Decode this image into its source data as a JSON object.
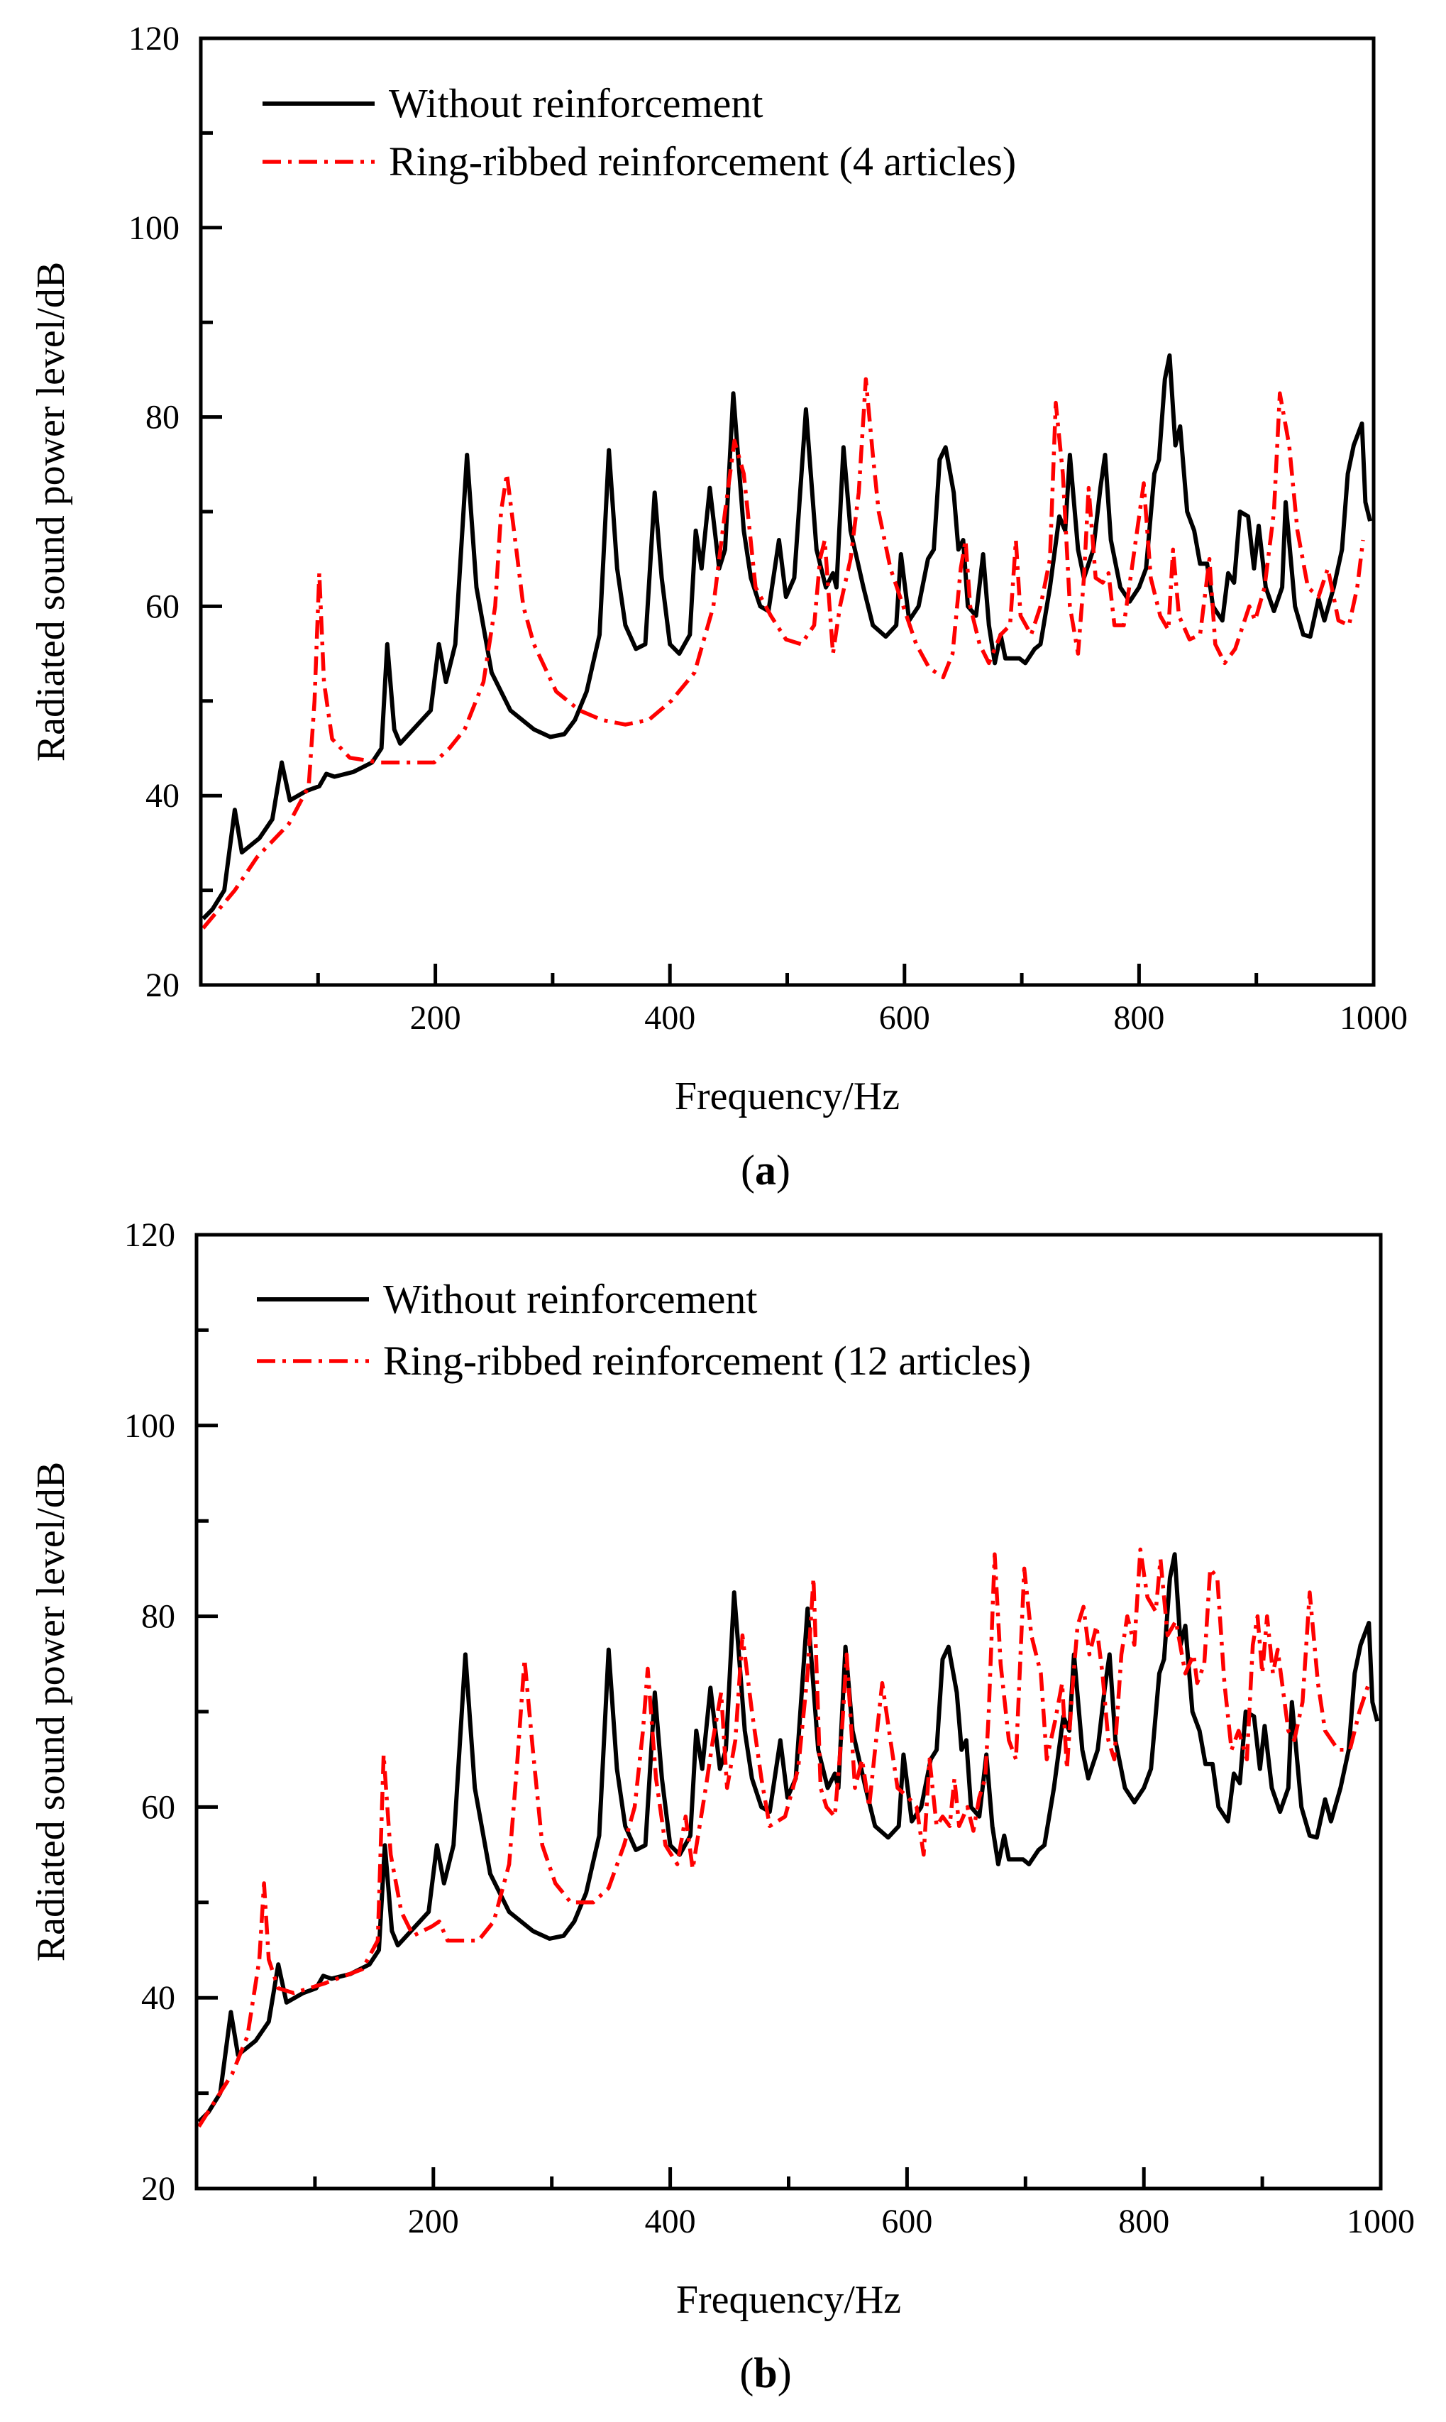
{
  "chart_data": [
    {
      "type": "line",
      "panel_label": "a",
      "xlabel": "Frequency/Hz",
      "ylabel": "Radiated sound power level/dB",
      "xlim": [
        0,
        1000
      ],
      "ylim": [
        20,
        120
      ],
      "xticks": [
        200,
        400,
        600,
        800,
        1000
      ],
      "yticks": [
        20,
        40,
        60,
        80,
        100,
        120
      ],
      "legend_position": "top-left",
      "grid": false,
      "series": [
        {
          "name": "Without reinforcement",
          "color": "#000000",
          "style": "solid",
          "x": [
            2,
            10,
            20,
            29,
            35,
            50,
            61,
            69,
            76,
            90,
            101,
            107,
            114,
            130,
            146,
            154,
            159,
            165,
            170,
            196,
            203,
            209,
            217,
            227,
            235,
            248,
            264,
            284,
            298,
            310,
            319,
            329,
            340,
            348,
            355,
            362,
            371,
            379,
            387,
            393,
            400,
            408,
            417,
            422,
            427,
            434,
            442,
            447,
            454,
            463,
            469,
            477,
            484,
            493,
            499,
            506,
            516,
            525,
            533,
            539,
            542,
            548,
            554,
            565,
            573,
            584,
            593,
            597,
            604,
            612,
            620,
            625,
            630,
            635,
            642,
            646,
            650,
            654,
            661,
            667,
            672,
            677,
            682,
            686,
            698,
            703,
            711,
            716,
            724,
            732,
            737,
            741,
            748,
            753,
            761,
            767,
            771,
            776,
            784,
            792,
            800,
            806,
            813,
            817,
            822,
            826,
            831,
            835,
            841,
            847,
            852,
            858,
            863,
            871,
            876,
            881,
            886,
            893,
            898,
            902,
            908,
            915,
            922,
            925,
            933,
            940,
            946,
            953,
            958,
            966,
            973,
            978,
            983,
            990,
            993,
            997
          ],
          "y": [
            27,
            28,
            30,
            38.5,
            34,
            35.5,
            37.5,
            43.5,
            39.5,
            40.5,
            41,
            42.3,
            42,
            42.5,
            43.5,
            45,
            56,
            47,
            45.5,
            49,
            56,
            52,
            56,
            76,
            62,
            53,
            49,
            47,
            46.2,
            46.5,
            48,
            51,
            57,
            76.5,
            64,
            58,
            55.5,
            56,
            72,
            63,
            56,
            55,
            57,
            68,
            64,
            72.5,
            64,
            66,
            82.5,
            68,
            63,
            60,
            59.5,
            67,
            61,
            63,
            80.8,
            66,
            62,
            63.5,
            62,
            76.8,
            68,
            62,
            58,
            56.8,
            58,
            65.5,
            58.5,
            60,
            65,
            66,
            75.5,
            76.8,
            72,
            66,
            67,
            60,
            59,
            65.5,
            58,
            54,
            57,
            54.5,
            54.5,
            54,
            55.5,
            56,
            62,
            69.5,
            68,
            76,
            66,
            63,
            66,
            72.5,
            76,
            67,
            62,
            60.5,
            62,
            64,
            74,
            75.5,
            84,
            86.5,
            77,
            79,
            70,
            68,
            64.5,
            64.5,
            60,
            58.5,
            63.5,
            62.5,
            70,
            69.5,
            64,
            68.5,
            62,
            59.5,
            62,
            71,
            60,
            57,
            56.8,
            60.8,
            58.5,
            62,
            66,
            74,
            77,
            79.3,
            71,
            69
          ]
        },
        {
          "name": "Ring-ribbed reinforcement (4 articles)",
          "color": "#ff0000",
          "style": "dash-dot",
          "x": [
            2,
            29,
            48,
            75,
            92,
            97,
            101,
            105,
            112,
            127,
            153,
            199,
            212,
            225,
            241,
            251,
            256,
            261,
            267,
            275,
            284,
            303,
            323,
            342,
            362,
            382,
            401,
            421,
            437,
            447,
            455,
            463,
            473,
            486,
            499,
            512,
            523,
            528,
            532,
            539,
            545,
            554,
            561,
            567,
            573,
            578,
            588,
            599,
            610,
            621,
            633,
            641,
            648,
            652,
            656,
            664,
            672,
            682,
            690,
            695,
            699,
            708,
            716,
            724,
            729,
            735,
            741,
            748,
            753,
            757,
            763,
            769,
            774,
            779,
            787,
            795,
            804,
            810,
            818,
            825,
            829,
            834,
            843,
            852,
            860,
            865,
            873,
            882,
            894,
            899,
            907,
            915,
            920,
            928,
            935,
            944,
            953,
            961,
            970,
            979,
            986,
            991
          ],
          "y": [
            26,
            30,
            33.5,
            37,
            41,
            50,
            63.5,
            52,
            46,
            44,
            43.5,
            43.5,
            45,
            47,
            52,
            60,
            70,
            74,
            68,
            60,
            56,
            51,
            49,
            48,
            47.5,
            48,
            50,
            53,
            60,
            70,
            77.5,
            74,
            62,
            59,
            56.5,
            56,
            58,
            65,
            67,
            55,
            60,
            65,
            72,
            84,
            76,
            70,
            64,
            60,
            56,
            53.5,
            52.5,
            55,
            64,
            67,
            60,
            56,
            54,
            57,
            58,
            67,
            59,
            57,
            60,
            65,
            81.5,
            74,
            60,
            55,
            63,
            72.5,
            63,
            62.5,
            63.5,
            58,
            58,
            65,
            73,
            63,
            59,
            57.5,
            66,
            59,
            56.5,
            57,
            65,
            56,
            54,
            55.5,
            60,
            58.5,
            62,
            70,
            82.5,
            77,
            68,
            62,
            61,
            64,
            58.5,
            58,
            62,
            67
          ]
        }
      ]
    },
    {
      "type": "line",
      "panel_label": "b",
      "xlabel": "Frequency/Hz",
      "ylabel": "Radiated sound power level/dB",
      "xlim": [
        0,
        1000
      ],
      "ylim": [
        20,
        120
      ],
      "xticks": [
        200,
        400,
        600,
        800,
        1000
      ],
      "yticks": [
        20,
        40,
        60,
        80,
        100,
        120
      ],
      "legend_position": "top-left",
      "grid": false,
      "series": [
        {
          "name": "Without reinforcement",
          "color": "#000000",
          "style": "solid",
          "x": [
            2,
            10,
            20,
            29,
            35,
            50,
            61,
            69,
            76,
            90,
            101,
            107,
            114,
            130,
            146,
            154,
            159,
            165,
            170,
            196,
            203,
            209,
            217,
            227,
            235,
            248,
            264,
            284,
            298,
            310,
            319,
            329,
            340,
            348,
            355,
            362,
            371,
            379,
            387,
            393,
            400,
            408,
            417,
            422,
            427,
            434,
            442,
            447,
            454,
            463,
            469,
            477,
            484,
            493,
            499,
            506,
            516,
            525,
            533,
            539,
            542,
            548,
            554,
            565,
            573,
            584,
            593,
            597,
            604,
            612,
            620,
            625,
            630,
            635,
            642,
            646,
            650,
            654,
            661,
            667,
            672,
            677,
            682,
            686,
            698,
            703,
            711,
            716,
            724,
            732,
            737,
            741,
            748,
            753,
            761,
            767,
            771,
            776,
            784,
            792,
            800,
            806,
            813,
            817,
            822,
            826,
            831,
            835,
            841,
            847,
            852,
            858,
            863,
            871,
            876,
            881,
            886,
            893,
            898,
            902,
            908,
            915,
            922,
            925,
            933,
            940,
            946,
            953,
            958,
            966,
            973,
            978,
            983,
            990,
            993,
            997
          ],
          "y": [
            27,
            28,
            30,
            38.5,
            34,
            35.5,
            37.5,
            43.5,
            39.5,
            40.5,
            41,
            42.3,
            42,
            42.5,
            43.5,
            45,
            56,
            47,
            45.5,
            49,
            56,
            52,
            56,
            76,
            62,
            53,
            49,
            47,
            46.2,
            46.5,
            48,
            51,
            57,
            76.5,
            64,
            58,
            55.5,
            56,
            72,
            63,
            56,
            55,
            57,
            68,
            64,
            72.5,
            64,
            66,
            82.5,
            68,
            63,
            60,
            59.5,
            67,
            61,
            63,
            80.8,
            66,
            62,
            63.5,
            62,
            76.8,
            68,
            62,
            58,
            56.8,
            58,
            65.5,
            58.5,
            60,
            65,
            66,
            75.5,
            76.8,
            72,
            66,
            67,
            60,
            59,
            65.5,
            58,
            54,
            57,
            54.5,
            54.5,
            54,
            55.5,
            56,
            62,
            69.5,
            68,
            76,
            66,
            63,
            66,
            72.5,
            76,
            67,
            62,
            60.5,
            62,
            64,
            74,
            75.5,
            84,
            86.5,
            77,
            79,
            70,
            68,
            64.5,
            64.5,
            60,
            58.5,
            63.5,
            62.5,
            70,
            69.5,
            64,
            68.5,
            62,
            59.5,
            62,
            71,
            60,
            57,
            56.8,
            60.8,
            58.5,
            62,
            66,
            74,
            77,
            79.3,
            71,
            69
          ]
        },
        {
          "name": "Ring-ribbed reinforcement (12 articles)",
          "color": "#ff0000",
          "style": "dash-dot",
          "x": [
            2,
            30,
            43,
            53,
            57,
            61,
            69,
            82,
            108,
            140,
            153,
            158,
            164,
            173,
            183,
            199,
            205,
            212,
            238,
            251,
            264,
            271,
            277,
            284,
            292,
            303,
            316,
            335,
            348,
            361,
            370,
            377,
            381,
            388,
            396,
            406,
            413,
            419,
            430,
            436,
            443,
            448,
            455,
            461,
            469,
            477,
            484,
            497,
            508,
            516,
            521,
            527,
            532,
            539,
            545,
            549,
            556,
            562,
            568,
            573,
            579,
            586,
            592,
            601,
            608,
            614,
            619,
            625,
            630,
            636,
            640,
            644,
            651,
            656,
            661,
            666,
            669,
            674,
            679,
            686,
            692,
            699,
            705,
            713,
            718,
            725,
            731,
            735,
            740,
            744,
            749,
            754,
            760,
            765,
            770,
            775,
            781,
            786,
            792,
            797,
            803,
            810,
            814,
            820,
            827,
            835,
            842,
            845,
            851,
            856,
            862,
            868,
            874,
            880,
            887,
            892,
            896,
            900,
            904,
            909,
            913,
            922,
            927,
            934,
            940,
            947,
            953,
            964,
            974,
            982,
            990
          ],
          "y": [
            26.5,
            32,
            36,
            44,
            52,
            44,
            41,
            40.5,
            41.5,
            43,
            46,
            65.5,
            55,
            49,
            46.5,
            47.5,
            48,
            46,
            46,
            48,
            54,
            65,
            75.5,
            66,
            56,
            52,
            50,
            50,
            51.5,
            56,
            60,
            68,
            74.5,
            63,
            56,
            54,
            59,
            53.5,
            62,
            67,
            72,
            62,
            67,
            78,
            70,
            63,
            58,
            59,
            64,
            74,
            84,
            62,
            60,
            59,
            68,
            76,
            62,
            65,
            60,
            66,
            73,
            67,
            62,
            61,
            60,
            55,
            65,
            58,
            59,
            58,
            63,
            58,
            60,
            57.5,
            61,
            63,
            70,
            86.5,
            75,
            67,
            65,
            85,
            78,
            74,
            65,
            69,
            73,
            64,
            73,
            79,
            81,
            76,
            79,
            74,
            67,
            65,
            76,
            80,
            77,
            87,
            82,
            80.5,
            86,
            78,
            79.5,
            74,
            76,
            73,
            75,
            85,
            84,
            73,
            66,
            68,
            65,
            77,
            80,
            74,
            80,
            74,
            76.5,
            68,
            67,
            71,
            82.5,
            73,
            68,
            66,
            66,
            70,
            73
          ]
        }
      ]
    }
  ]
}
